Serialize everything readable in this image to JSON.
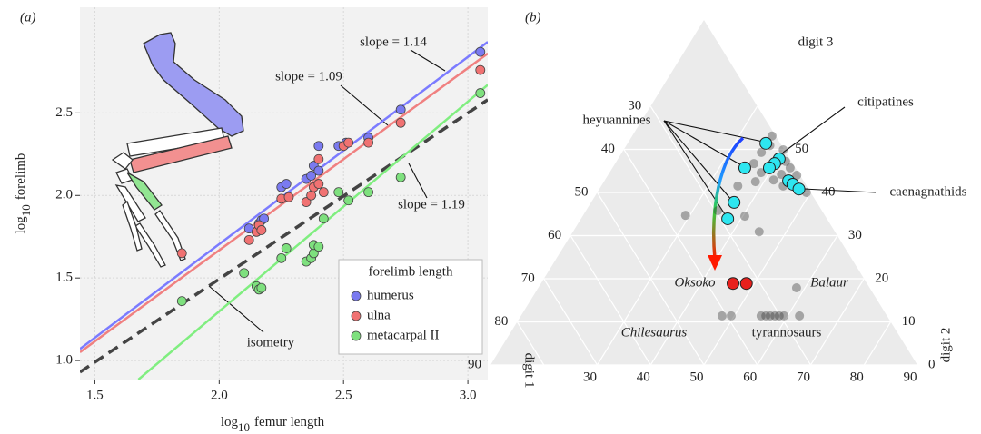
{
  "chart_data": [
    {
      "type": "scatter",
      "panel_label": "(a)",
      "xlabel": {
        "prefix": "log",
        "subscript": "10",
        "text": "femur length"
      },
      "ylabel": {
        "prefix": "log",
        "subscript": "10",
        "text": "forelimb"
      },
      "xlim": [
        1.44,
        3.08
      ],
      "ylim": [
        0.885,
        3.14
      ],
      "xticks": [
        1.5,
        {
          "value": 2,
          "label": "2.0"
        },
        2.5,
        {
          "value": 3,
          "label": "3.0"
        }
      ],
      "yticks": [
        {
          "value": 1,
          "label": "1.0"
        },
        1.5,
        {
          "value": 2,
          "label": "2.0"
        },
        2.5
      ],
      "grid": true,
      "legend": {
        "title": "forelimb length",
        "position": "lower right"
      },
      "series": [
        {
          "name": "humerus",
          "color": "#7a7af0",
          "x": [
            2.12,
            2.15,
            2.16,
            2.17,
            2.18,
            2.25,
            2.27,
            2.35,
            2.37,
            2.38,
            2.4,
            2.4,
            2.48,
            2.51,
            2.6,
            2.73,
            3.05
          ],
          "y": [
            1.8,
            1.78,
            1.83,
            1.85,
            1.86,
            2.05,
            2.07,
            2.1,
            2.12,
            2.18,
            2.15,
            2.3,
            2.3,
            2.32,
            2.35,
            2.52,
            2.87
          ]
        },
        {
          "name": "ulna",
          "color": "#f07272",
          "x": [
            1.85,
            2.12,
            2.15,
            2.16,
            2.17,
            2.25,
            2.28,
            2.35,
            2.37,
            2.38,
            2.4,
            2.42,
            2.4,
            2.5,
            2.52,
            2.6,
            2.73,
            3.05
          ],
          "y": [
            1.65,
            1.73,
            1.78,
            1.82,
            1.79,
            1.98,
            1.99,
            1.96,
            2.0,
            2.05,
            2.07,
            2.02,
            2.22,
            2.3,
            2.32,
            2.32,
            2.44,
            2.76
          ]
        },
        {
          "name": "metacarpal II",
          "color": "#7ee07e",
          "x": [
            1.85,
            2.1,
            2.15,
            2.16,
            2.17,
            2.25,
            2.27,
            2.35,
            2.37,
            2.38,
            2.38,
            2.4,
            2.42,
            2.48,
            2.52,
            2.6,
            2.73,
            3.05
          ],
          "y": [
            1.36,
            1.53,
            1.45,
            1.43,
            1.44,
            1.62,
            1.68,
            1.6,
            1.62,
            1.65,
            1.7,
            1.69,
            1.86,
            2.02,
            1.97,
            2.02,
            2.11,
            2.62
          ]
        }
      ],
      "fits": [
        {
          "label": "slope = 1.14",
          "color": "#7b7bff",
          "dashed": false,
          "x": [
            1.44,
            3.08
          ],
          "y": [
            1.07,
            2.93
          ]
        },
        {
          "label": "slope = 1.09",
          "color": "#f08080",
          "dashed": false,
          "x": [
            1.44,
            3.08
          ],
          "y": [
            1.05,
            2.86
          ]
        },
        {
          "label": "isometry",
          "color": "#444444",
          "dashed": true,
          "x": [
            1.44,
            3.08
          ],
          "y": [
            0.93,
            2.58
          ]
        },
        {
          "label": "slope = 1.19",
          "color": "#80ee80",
          "dashed": false,
          "x": [
            1.675,
            3.08
          ],
          "y": [
            0.885,
            2.67
          ]
        }
      ]
    },
    {
      "type": "ternary",
      "panel_label": "(b)",
      "grid": true,
      "axes": [
        {
          "title": "digit 1",
          "limits": [
            10,
            90
          ],
          "ticks": [
            30,
            40,
            50,
            60,
            70,
            80,
            90
          ]
        },
        {
          "title": "digit 2",
          "limits": [
            10,
            90
          ],
          "ticks": [
            30,
            40,
            50,
            60,
            70,
            80,
            90
          ]
        },
        {
          "title": "digit 3",
          "limits": [
            0,
            80
          ],
          "ticks": [
            0,
            10,
            20,
            30,
            40,
            50
          ]
        }
      ],
      "series": [
        {
          "color": "#3a3a3a",
          "alpha": 0.4,
          "digit1": [
            10.7,
            10.2,
            14.6,
            11.1,
            11.0,
            17.0,
            13.4,
            15.5,
            10.6,
            19.1,
            22.9,
            14.4,
            10.8,
            29.5,
            36.1,
            25.1,
            24.2,
            23.7,
            40.9,
            39.2,
            33.6,
            32.7,
            31.9,
            31.0,
            30.2,
            29.3,
            26.4,
            12.2,
            17.3
          ],
          "digit2": [
            36.2,
            39.9,
            36.1,
            41.7,
            43.3,
            38.4,
            42.4,
            41.6,
            45.4,
            38.4,
            35.6,
            44.1,
            49.2,
            34.7,
            29.2,
            40.4,
            44.9,
            58.4,
            47.7,
            49.4,
            55.0,
            55.9,
            56.7,
            57.6,
            58.4,
            59.3,
            62.2,
            36.9,
            36.0
          ],
          "digit3": [
            53.1,
            49.9,
            49.3,
            47.2,
            45.7,
            44.6,
            44.2,
            42.9,
            44.0,
            42.5,
            41.5,
            41.5,
            40.0,
            35.8,
            34.7,
            34.5,
            30.9,
            17.9,
            11.4,
            11.4,
            11.4,
            11.4,
            11.4,
            11.4,
            11.4,
            11.4,
            11.4,
            50.9,
            46.7
          ]
        },
        {
          "color": "#e8201c",
          "alpha": 1,
          "digit1": [
            35.1,
            32.6
          ],
          "digit2": [
            46.0,
            48.5
          ],
          "digit3": [
            18.9,
            18.9
          ]
        },
        {
          "color": "#2ee6f0",
          "alpha": 1,
          "digit1": [
            12.7,
            12.0,
            13.4,
            14.9,
            19.5,
            12.8,
            12.4,
            11.8,
            25.5,
            28.6
          ],
          "digit2": [
            35.9,
            40.2,
            39.9,
            39.4,
            34.8,
            44.5,
            45.7,
            47.4,
            36.8,
            37.5
          ],
          "digit3": [
            51.4,
            47.8,
            46.7,
            45.7,
            45.7,
            42.7,
            41.9,
            40.8,
            37.7,
            33.9
          ]
        }
      ],
      "annotations": [
        {
          "text": "heyuannines",
          "italic": false
        },
        {
          "text": "citipatines",
          "italic": false
        },
        {
          "text": "caenagnathids",
          "italic": false
        },
        {
          "text": "Oksoko",
          "italic": true
        },
        {
          "text": "Balaur",
          "italic": true
        },
        {
          "text": "Chilesaurus",
          "italic": true
        },
        {
          "text": "tyrannosaurs",
          "italic": false
        }
      ]
    }
  ]
}
